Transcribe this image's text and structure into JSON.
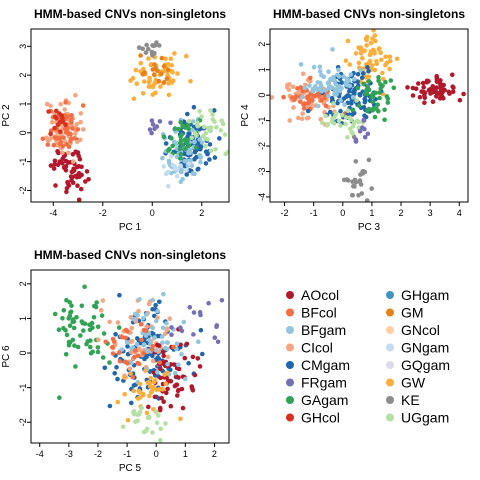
{
  "chart_data": [
    {
      "type": "scatter",
      "title": "HMM-based CNVs non-singletons",
      "xlabel": "PC 1",
      "ylabel": "PC 2",
      "xlim": [
        -4.9,
        3.1
      ],
      "ylim": [
        -2.4,
        3.6
      ],
      "xticks": [
        -4,
        -2,
        0,
        2
      ],
      "yticks": [
        -2,
        -1,
        0,
        1,
        2,
        3
      ],
      "clusters": [
        {
          "group": "AOcol",
          "cx": -3.3,
          "cy": -1.2,
          "sx": 0.35,
          "sy": 0.45,
          "n": 60
        },
        {
          "group": "CIcol",
          "cx": -3.7,
          "cy": 0.1,
          "sx": 0.35,
          "sy": 0.45,
          "n": 70
        },
        {
          "group": "BFcol",
          "cx": -3.6,
          "cy": 0.1,
          "sx": 0.3,
          "sy": 0.35,
          "n": 40
        },
        {
          "group": "GHcol",
          "cx": -3.8,
          "cy": 0.4,
          "sx": 0.3,
          "sy": 0.3,
          "n": 15
        },
        {
          "group": "GW",
          "cx": 0.3,
          "cy": 2.0,
          "sx": 0.6,
          "sy": 0.35,
          "n": 60
        },
        {
          "group": "GM",
          "cx": 0.1,
          "cy": 2.1,
          "sx": 0.3,
          "sy": 0.3,
          "n": 15
        },
        {
          "group": "KE",
          "cx": 0.0,
          "cy": 2.9,
          "sx": 0.2,
          "sy": 0.15,
          "n": 15
        },
        {
          "group": "CMgam",
          "cx": 1.6,
          "cy": -0.4,
          "sx": 0.45,
          "sy": 0.5,
          "n": 100
        },
        {
          "group": "BFgam",
          "cx": 1.2,
          "cy": -0.6,
          "sx": 0.45,
          "sy": 0.5,
          "n": 60
        },
        {
          "group": "GAgam",
          "cx": 1.2,
          "cy": -0.1,
          "sx": 0.35,
          "sy": 0.3,
          "n": 30
        },
        {
          "group": "UGgam",
          "cx": 2.2,
          "cy": 0.0,
          "sx": 0.35,
          "sy": 0.4,
          "n": 30
        },
        {
          "group": "FRgam",
          "cx": 0.3,
          "cy": 0.3,
          "sx": 0.25,
          "sy": 0.25,
          "n": 8
        },
        {
          "group": "GNgam",
          "cx": 1.0,
          "cy": -1.1,
          "sx": 0.3,
          "sy": 0.25,
          "n": 15
        }
      ]
    },
    {
      "type": "scatter",
      "title": "HMM-based CNVs non-singletons",
      "xlabel": "PC 3",
      "ylabel": "PC 4",
      "xlim": [
        -2.5,
        4.3
      ],
      "ylim": [
        -4.2,
        2.6
      ],
      "xticks": [
        -2,
        -1,
        0,
        1,
        2,
        3,
        4
      ],
      "yticks": [
        -4,
        -3,
        -2,
        -1,
        0,
        1,
        2
      ],
      "clusters": [
        {
          "group": "AOcol",
          "cx": 3.1,
          "cy": 0.2,
          "sx": 0.4,
          "sy": 0.25,
          "n": 60
        },
        {
          "group": "CIcol",
          "cx": -1.3,
          "cy": -0.2,
          "sx": 0.45,
          "sy": 0.35,
          "n": 70
        },
        {
          "group": "BFcol",
          "cx": -1.1,
          "cy": -0.1,
          "sx": 0.4,
          "sy": 0.3,
          "n": 40
        },
        {
          "group": "GW",
          "cx": 0.9,
          "cy": 1.3,
          "sx": 0.35,
          "sy": 0.5,
          "n": 60
        },
        {
          "group": "KE",
          "cx": 0.5,
          "cy": -3.3,
          "sx": 0.25,
          "sy": 0.45,
          "n": 25
        },
        {
          "group": "CMgam",
          "cx": 0.3,
          "cy": 0.0,
          "sx": 0.45,
          "sy": 0.5,
          "n": 100
        },
        {
          "group": "GAgam",
          "cx": 1.1,
          "cy": 0.0,
          "sx": 0.35,
          "sy": 0.45,
          "n": 40
        },
        {
          "group": "UGgam",
          "cx": 0.0,
          "cy": -1.0,
          "sx": 0.4,
          "sy": 0.3,
          "n": 30
        },
        {
          "group": "FRgam",
          "cx": 0.7,
          "cy": -1.5,
          "sx": 0.2,
          "sy": 0.3,
          "n": 10
        },
        {
          "group": "BFgam",
          "cx": -0.4,
          "cy": 0.4,
          "sx": 0.5,
          "sy": 0.4,
          "n": 60
        }
      ]
    },
    {
      "type": "scatter",
      "title": "HMM-based CNVs non-singletons",
      "xlabel": "PC 5",
      "ylabel": "PC 6",
      "xlim": [
        -4.3,
        2.5
      ],
      "ylim": [
        -2.6,
        2.4
      ],
      "xticks": [
        -4,
        -3,
        -2,
        -1,
        0,
        1,
        2
      ],
      "yticks": [
        -2,
        -1,
        0,
        1,
        2
      ],
      "clusters": [
        {
          "group": "GAgam",
          "cx": -2.5,
          "cy": 0.8,
          "sx": 0.55,
          "sy": 0.6,
          "n": 60
        },
        {
          "group": "CMgam",
          "cx": -0.3,
          "cy": 0.0,
          "sx": 0.6,
          "sy": 0.6,
          "n": 120
        },
        {
          "group": "CIcol",
          "cx": -0.6,
          "cy": 0.4,
          "sx": 0.5,
          "sy": 0.5,
          "n": 60
        },
        {
          "group": "AOcol",
          "cx": 0.5,
          "cy": -0.6,
          "sx": 0.4,
          "sy": 0.5,
          "n": 60
        },
        {
          "group": "BFgam",
          "cx": 0.0,
          "cy": 0.3,
          "sx": 0.6,
          "sy": 0.6,
          "n": 50
        },
        {
          "group": "GW",
          "cx": -0.3,
          "cy": -1.1,
          "sx": 0.4,
          "sy": 0.4,
          "n": 40
        },
        {
          "group": "UGgam",
          "cx": -0.3,
          "cy": -1.9,
          "sx": 0.35,
          "sy": 0.25,
          "n": 25
        },
        {
          "group": "FRgam",
          "cx": 1.3,
          "cy": 1.0,
          "sx": 0.5,
          "sy": 0.4,
          "n": 15
        },
        {
          "group": "BFcol",
          "cx": -0.8,
          "cy": 0.1,
          "sx": 0.45,
          "sy": 0.45,
          "n": 30
        }
      ]
    }
  ],
  "legend": [
    {
      "label": "AOcol",
      "color": "#b2182b"
    },
    {
      "label": "BFcol",
      "color": "#f46d43"
    },
    {
      "label": "BFgam",
      "color": "#92c5de"
    },
    {
      "label": "CIcol",
      "color": "#f4a582"
    },
    {
      "label": "CMgam",
      "color": "#2166ac"
    },
    {
      "label": "FRgam",
      "color": "#7570b3"
    },
    {
      "label": "GAgam",
      "color": "#31a354"
    },
    {
      "label": "GHcol",
      "color": "#d7301f"
    },
    {
      "label": "GHgam",
      "color": "#4393c3"
    },
    {
      "label": "GM",
      "color": "#e6801a"
    },
    {
      "label": "GNcol",
      "color": "#fdd0a2"
    },
    {
      "label": "GNgam",
      "color": "#c6dbef"
    },
    {
      "label": "GQgam",
      "color": "#dadaeb"
    },
    {
      "label": "GW",
      "color": "#fbae3b"
    },
    {
      "label": "KE",
      "color": "#8c8c8c"
    },
    {
      "label": "UGgam",
      "color": "#b5e0a2"
    }
  ]
}
